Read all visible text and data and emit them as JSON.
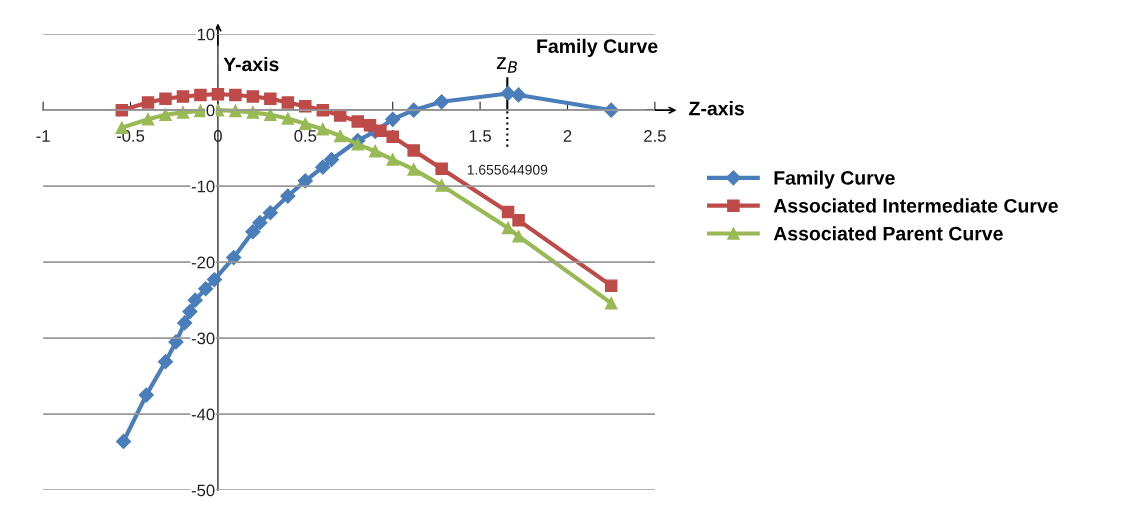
{
  "chart_data": {
    "type": "line",
    "xlabel": "Z-axis",
    "ylabel": "Y-axis",
    "xlim": [
      -1,
      2.5
    ],
    "xticks": [
      -1,
      -0.5,
      0,
      0.5,
      1,
      1.5,
      2,
      2.5
    ],
    "ylim": [
      -50,
      10
    ],
    "yticks": [
      -50,
      -40,
      -30,
      -20,
      -10,
      0,
      10
    ],
    "grid": "y",
    "legend": "right",
    "ref_lines": [
      {
        "axis": "x",
        "value": 1.655644909,
        "label": "z$_{B}$",
        "color": "#000000",
        "line_style": "dotted"
      }
    ],
    "annotations": [
      "Family Curve",
      "1.655644909"
    ],
    "series": [
      {
        "name": "Family Curve",
        "color": "#4a7ebb",
        "marker": "diamond",
        "x": [
          -0.54,
          -0.41,
          -0.3,
          -0.24,
          -0.19,
          -0.16,
          -0.13,
          -0.07,
          -0.02,
          0.09,
          0.2,
          0.24,
          0.3,
          0.4,
          0.5,
          0.6,
          0.65,
          0.8,
          0.9,
          1.0,
          1.12,
          1.28,
          1.66,
          1.72,
          2.25
        ],
        "values": [
          -43.6,
          -37.5,
          -33.1,
          -30.5,
          -28,
          -26.5,
          -25,
          -23.5,
          -22.3,
          -19.4,
          -16,
          -14.8,
          -13.5,
          -11.3,
          -9.3,
          -7.5,
          -6.5,
          -4,
          -2.8,
          -1.2,
          0,
          1.1,
          2.2,
          2,
          0
        ]
      },
      {
        "name": "Associated Intermediate Curve",
        "color": "#be4b48",
        "marker": "square",
        "x": [
          -0.55,
          -0.4,
          -0.3,
          -0.2,
          -0.1,
          0,
          0.1,
          0.2,
          0.3,
          0.4,
          0.5,
          0.6,
          0.7,
          0.8,
          0.87,
          0.93,
          1.0,
          1.12,
          1.28,
          1.66,
          1.72,
          2.25
        ],
        "values": [
          0,
          1,
          1.5,
          1.8,
          2,
          2.1,
          2,
          1.8,
          1.5,
          1,
          0.5,
          0,
          -0.7,
          -1.5,
          -2,
          -2.7,
          -3.5,
          -5.3,
          -7.7,
          -13.4,
          -14.5,
          -23.1
        ]
      },
      {
        "name": "Associated Parent Curve",
        "color": "#98b954",
        "marker": "triangle",
        "x": [
          -0.55,
          -0.4,
          -0.3,
          -0.2,
          -0.1,
          0,
          0.1,
          0.2,
          0.3,
          0.4,
          0.5,
          0.6,
          0.7,
          0.8,
          0.9,
          1.0,
          1.12,
          1.28,
          1.66,
          1.72,
          2.25
        ],
        "values": [
          -2.3,
          -1.2,
          -0.6,
          -0.3,
          -0.1,
          0,
          -0.1,
          -0.3,
          -0.6,
          -1.1,
          -1.8,
          -2.5,
          -3.4,
          -4.5,
          -5.4,
          -6.5,
          -7.8,
          -9.9,
          -15.5,
          -16.6,
          -25.4
        ]
      }
    ]
  }
}
